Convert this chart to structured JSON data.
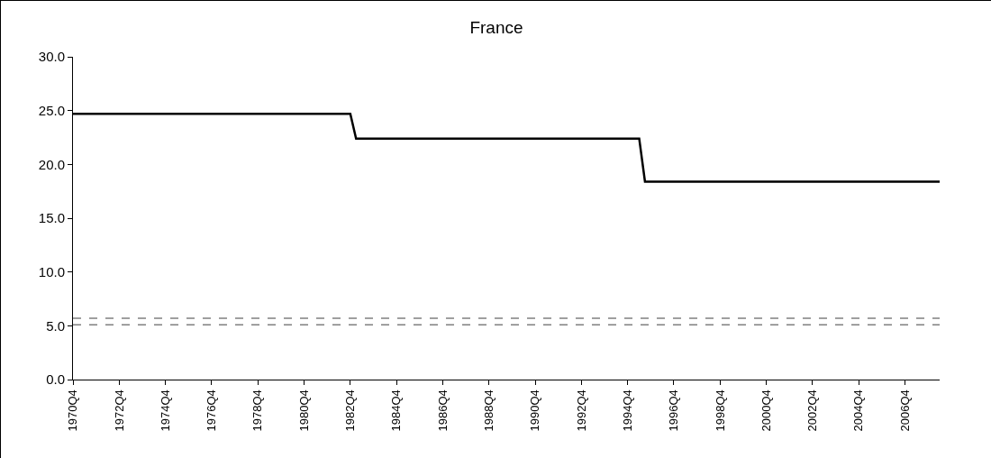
{
  "chart_data": {
    "type": "line",
    "title": "France",
    "categories": [
      "1970Q4",
      null,
      null,
      null,
      null,
      null,
      null,
      null,
      "1972Q4",
      null,
      null,
      null,
      null,
      null,
      null,
      null,
      "1974Q4",
      null,
      null,
      null,
      null,
      null,
      null,
      null,
      "1976Q4",
      null,
      null,
      null,
      null,
      null,
      null,
      null,
      "1978Q4",
      null,
      null,
      null,
      null,
      null,
      null,
      null,
      "1980Q4",
      null,
      null,
      null,
      null,
      null,
      null,
      null,
      "1982Q4",
      null,
      null,
      null,
      null,
      null,
      null,
      null,
      "1984Q4",
      null,
      null,
      null,
      null,
      null,
      null,
      null,
      "1986Q4",
      null,
      null,
      null,
      null,
      null,
      null,
      null,
      "1988Q4",
      null,
      null,
      null,
      null,
      null,
      null,
      null,
      "1990Q4",
      null,
      null,
      null,
      null,
      null,
      null,
      null,
      "1992Q4",
      null,
      null,
      null,
      null,
      null,
      null,
      null,
      "1994Q4",
      null,
      null,
      null,
      null,
      null,
      null,
      null,
      "1996Q4",
      null,
      null,
      null,
      null,
      null,
      null,
      null,
      "1998Q4",
      null,
      null,
      null,
      null,
      null,
      null,
      null,
      "2000Q4",
      null,
      null,
      null,
      null,
      null,
      null,
      null,
      "2002Q4",
      null,
      null,
      null,
      null,
      null,
      null,
      null,
      "2004Q4",
      null,
      null,
      null,
      null,
      null,
      null,
      null,
      "2006Q4",
      null,
      null,
      null,
      null,
      null,
      null
    ],
    "series": [
      {
        "color": "#000000",
        "values": [
          24.7,
          24.7,
          24.7,
          24.7,
          24.7,
          24.7,
          24.7,
          24.7,
          24.7,
          24.7,
          24.7,
          24.7,
          24.7,
          24.7,
          24.7,
          24.7,
          24.7,
          24.7,
          24.7,
          24.7,
          24.7,
          24.7,
          24.7,
          24.7,
          24.7,
          24.7,
          24.7,
          24.7,
          24.7,
          24.7,
          24.7,
          24.7,
          24.7,
          24.7,
          24.7,
          24.7,
          24.7,
          24.7,
          24.7,
          24.7,
          24.7,
          24.7,
          24.7,
          24.7,
          24.7,
          24.7,
          24.7,
          24.7,
          24.7,
          22.4,
          22.4,
          22.4,
          22.4,
          22.4,
          22.4,
          22.4,
          22.4,
          22.4,
          22.4,
          22.4,
          22.4,
          22.4,
          22.4,
          22.4,
          22.4,
          22.4,
          22.4,
          22.4,
          22.4,
          22.4,
          22.4,
          22.4,
          22.4,
          22.4,
          22.4,
          22.4,
          22.4,
          22.4,
          22.4,
          22.4,
          22.4,
          22.4,
          22.4,
          22.4,
          22.4,
          22.4,
          22.4,
          22.4,
          22.4,
          22.4,
          22.4,
          22.4,
          22.4,
          22.4,
          22.4,
          22.4,
          22.4,
          22.4,
          22.4,
          18.4,
          18.4,
          18.4,
          18.4,
          18.4,
          18.4,
          18.4,
          18.4,
          18.4,
          18.4,
          18.4,
          18.4,
          18.4,
          18.4,
          18.4,
          18.4,
          18.4,
          18.4,
          18.4,
          18.4,
          18.4,
          18.4,
          18.4,
          18.4,
          18.4,
          18.4,
          18.4,
          18.4,
          18.4,
          18.4,
          18.4,
          18.4,
          18.4,
          18.4,
          18.4,
          18.4,
          18.4,
          18.4,
          18.4,
          18.4,
          18.4,
          18.4,
          18.4,
          18.4,
          18.4,
          18.4,
          18.4,
          18.4,
          18.4,
          18.4,
          18.4,
          18.4
        ]
      }
    ],
    "ylim": [
      0,
      30
    ],
    "yticks": [
      {
        "value": 0,
        "label": "0.0"
      },
      {
        "value": 5,
        "label": "5.0"
      },
      {
        "value": 10,
        "label": "10.0"
      },
      {
        "value": 15,
        "label": "15.0"
      },
      {
        "value": 20,
        "label": "20.0"
      },
      {
        "value": 25,
        "label": "25.0"
      },
      {
        "value": 30,
        "label": "30.0"
      }
    ],
    "ref_lines": [
      {
        "axis": "y",
        "value": 5.7,
        "color": "#808080",
        "line_style": "dashed"
      },
      {
        "axis": "y",
        "value": 5.1,
        "color": "#808080",
        "line_style": "dashed"
      }
    ],
    "grid": false,
    "marker": "none",
    "line_style": "solid"
  }
}
